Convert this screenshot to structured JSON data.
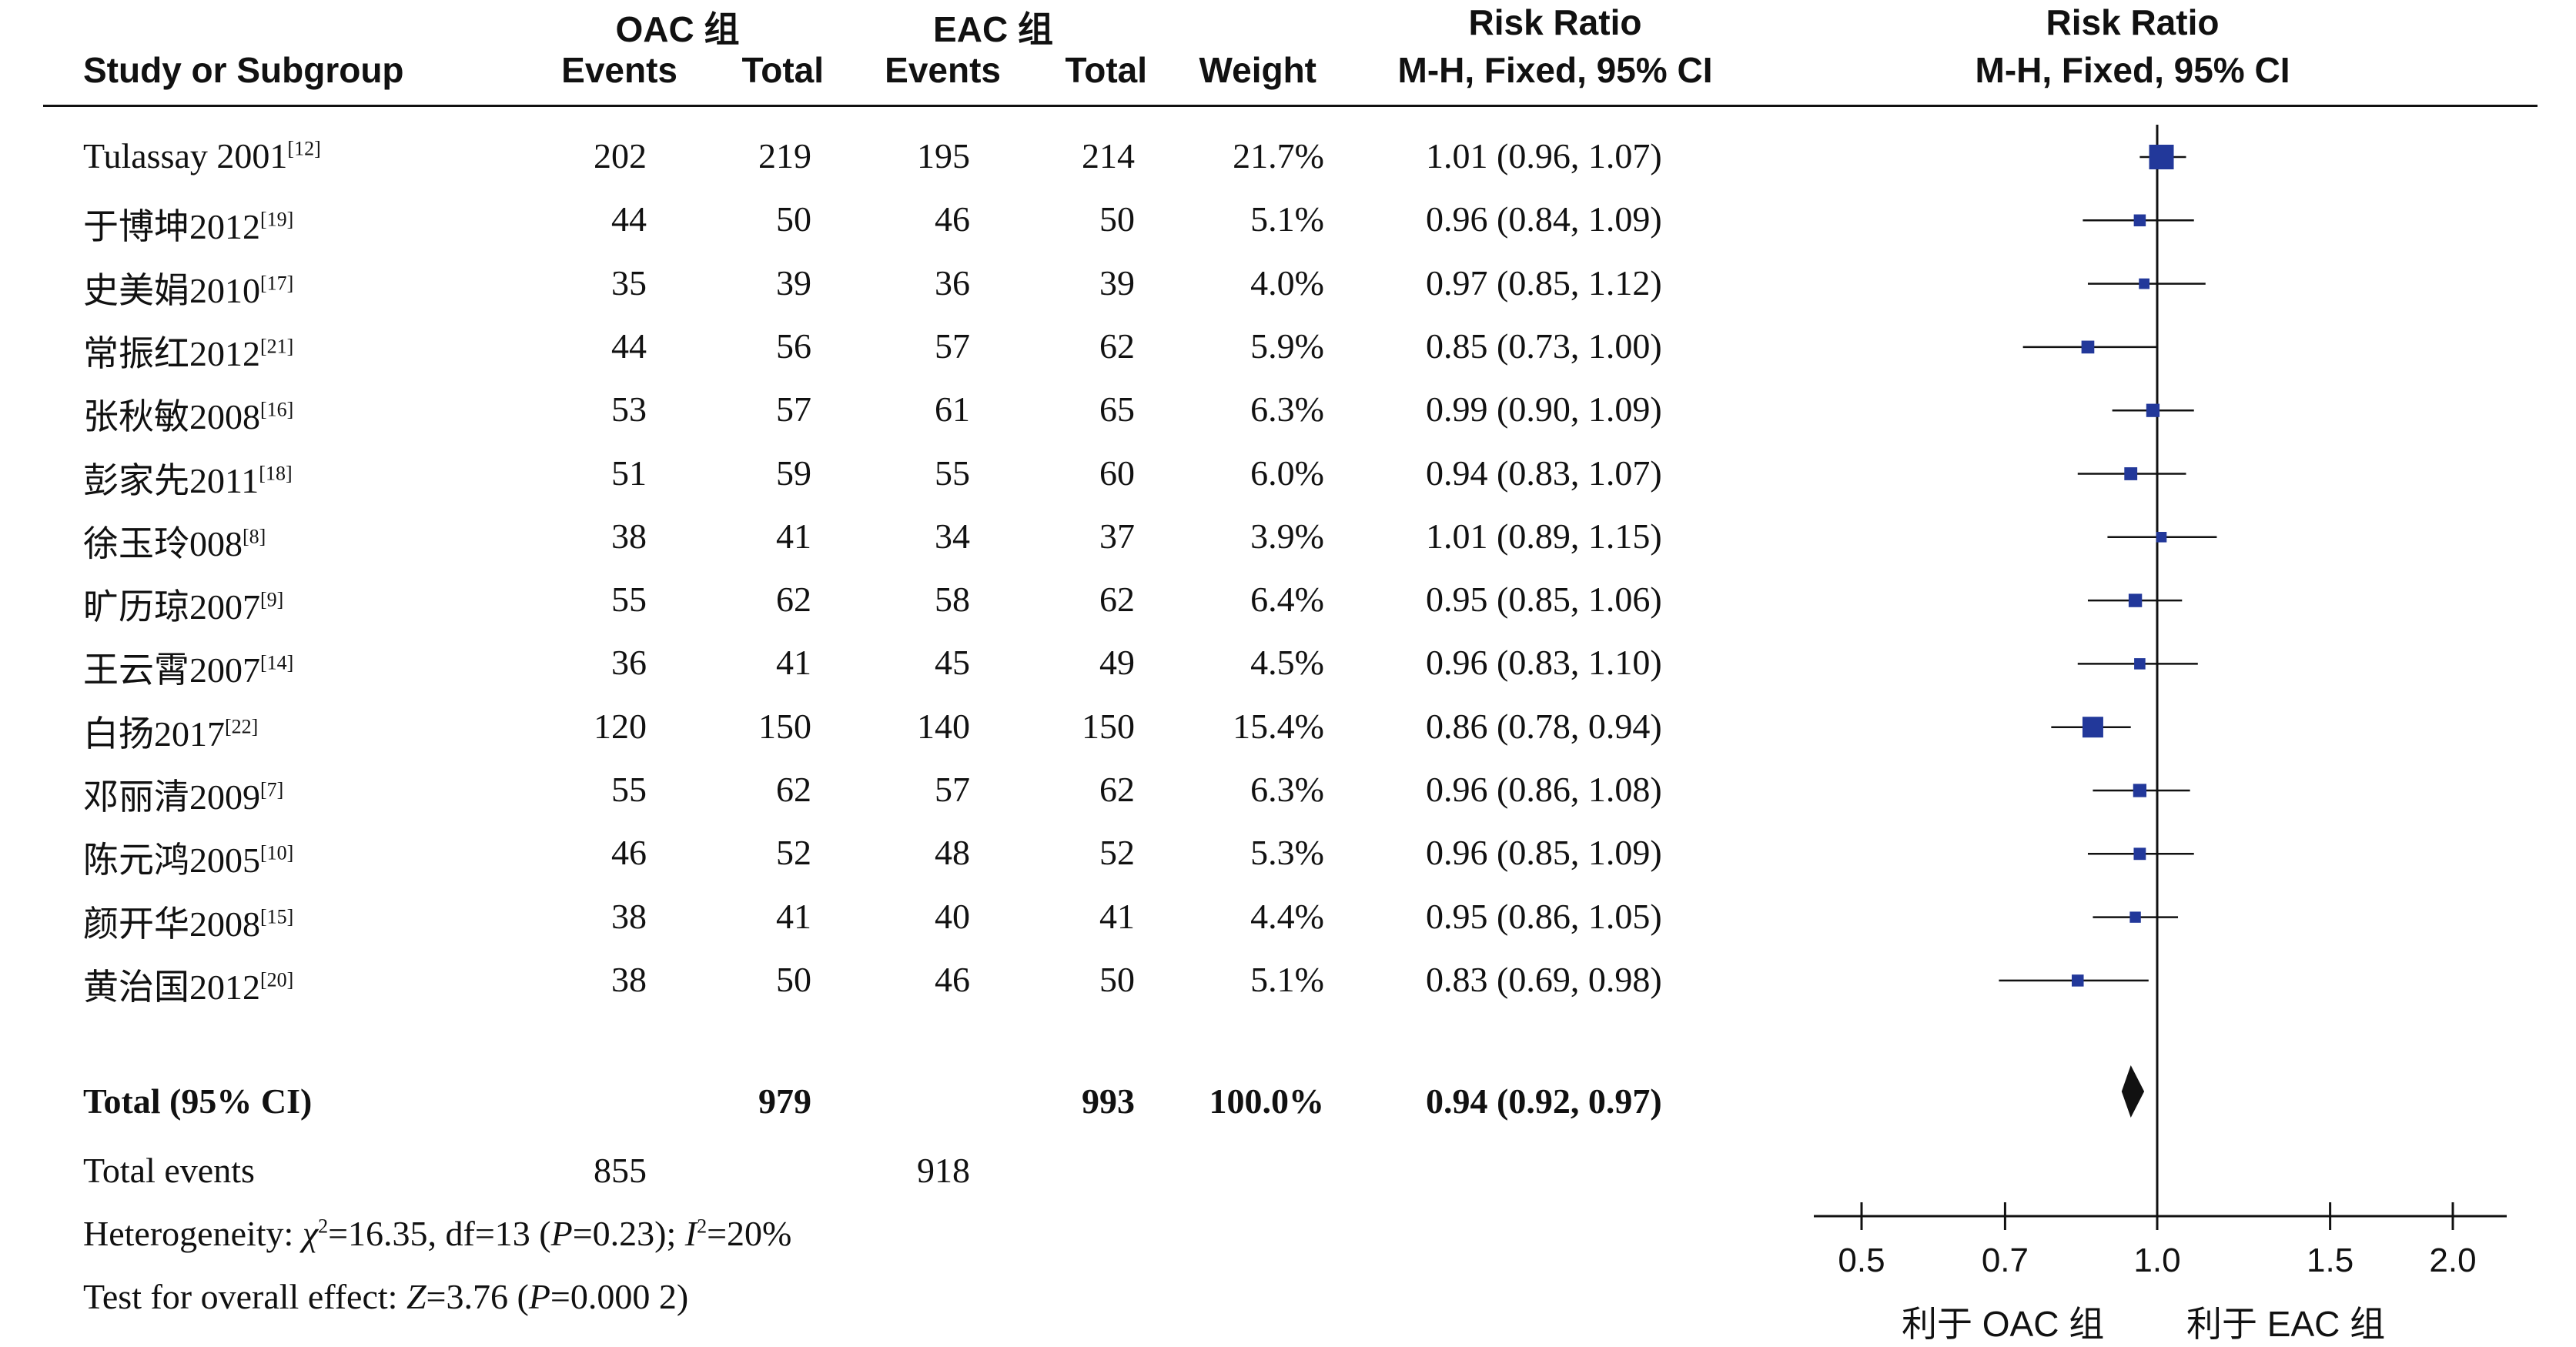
{
  "header": {
    "group1": "OAC 组",
    "group2": "EAC 组",
    "study_col": "Study or Subgroup",
    "events": "Events",
    "total": "Total",
    "weight": "Weight",
    "rr_title": "Risk Ratio",
    "rr_method": "M-H, Fixed, 95% CI",
    "plot_title": "Risk Ratio",
    "plot_method": "M-H, Fixed, 95% CI"
  },
  "studies": [
    {
      "name": "Tulassay 2001",
      "ref": "[12]",
      "oac_events": "202",
      "oac_total": "219",
      "eac_events": "195",
      "eac_total": "214",
      "weight": "21.7%",
      "rr_text": "1.01 (0.96, 1.07)"
    },
    {
      "name": "于博坤2012",
      "ref": "[19]",
      "oac_events": "44",
      "oac_total": "50",
      "eac_events": "46",
      "eac_total": "50",
      "weight": "5.1%",
      "rr_text": "0.96 (0.84, 1.09)"
    },
    {
      "name": "史美娟2010",
      "ref": "[17]",
      "oac_events": "35",
      "oac_total": "39",
      "eac_events": "36",
      "eac_total": "39",
      "weight": "4.0%",
      "rr_text": "0.97 (0.85, 1.12)"
    },
    {
      "name": "常振红2012",
      "ref": "[21]",
      "oac_events": "44",
      "oac_total": "56",
      "eac_events": "57",
      "eac_total": "62",
      "weight": "5.9%",
      "rr_text": "0.85 (0.73, 1.00)"
    },
    {
      "name": "张秋敏2008",
      "ref": "[16]",
      "oac_events": "53",
      "oac_total": "57",
      "eac_events": "61",
      "eac_total": "65",
      "weight": "6.3%",
      "rr_text": "0.99 (0.90, 1.09)"
    },
    {
      "name": "彭家先2011",
      "ref": "[18]",
      "oac_events": "51",
      "oac_total": "59",
      "eac_events": "55",
      "eac_total": "60",
      "weight": "6.0%",
      "rr_text": "0.94 (0.83, 1.07)"
    },
    {
      "name": "徐玉玲008",
      "ref": "[8]",
      "oac_events": "38",
      "oac_total": "41",
      "eac_events": "34",
      "eac_total": "37",
      "weight": "3.9%",
      "rr_text": "1.01 (0.89, 1.15)"
    },
    {
      "name": "旷历琼2007",
      "ref": "[9]",
      "oac_events": "55",
      "oac_total": "62",
      "eac_events": "58",
      "eac_total": "62",
      "weight": "6.4%",
      "rr_text": "0.95 (0.85, 1.06)"
    },
    {
      "name": "王云霄2007",
      "ref": "[14]",
      "oac_events": "36",
      "oac_total": "41",
      "eac_events": "45",
      "eac_total": "49",
      "weight": "4.5%",
      "rr_text": "0.96 (0.83, 1.10)"
    },
    {
      "name": "白扬2017",
      "ref": "[22]",
      "oac_events": "120",
      "oac_total": "150",
      "eac_events": "140",
      "eac_total": "150",
      "weight": "15.4%",
      "rr_text": "0.86 (0.78, 0.94)"
    },
    {
      "name": "邓丽清2009",
      "ref": "[7]",
      "oac_events": "55",
      "oac_total": "62",
      "eac_events": "57",
      "eac_total": "62",
      "weight": "6.3%",
      "rr_text": "0.96 (0.86, 1.08)"
    },
    {
      "name": "陈元鸿2005",
      "ref": "[10]",
      "oac_events": "46",
      "oac_total": "52",
      "eac_events": "48",
      "eac_total": "52",
      "weight": "5.3%",
      "rr_text": "0.96 (0.85, 1.09)"
    },
    {
      "name": "颜开华2008",
      "ref": "[15]",
      "oac_events": "38",
      "oac_total": "41",
      "eac_events": "40",
      "eac_total": "41",
      "weight": "4.4%",
      "rr_text": "0.95 (0.86, 1.05)"
    },
    {
      "name": "黄治国2012",
      "ref": "[20]",
      "oac_events": "38",
      "oac_total": "50",
      "eac_events": "46",
      "eac_total": "50",
      "weight": "5.1%",
      "rr_text": "0.83 (0.69, 0.98)"
    }
  ],
  "total_row": {
    "label": "Total (95% CI)",
    "oac_total": "979",
    "eac_total": "993",
    "weight": "100.0%",
    "rr_text": "0.94 (0.92, 0.97)"
  },
  "total_events": {
    "label": "Total events",
    "oac": "855",
    "eac": "918"
  },
  "heterogeneity": {
    "prefix": "Heterogeneity: ",
    "chi": "χ",
    "chi_val": "=16.35, df=13 (",
    "p": "P",
    "p_val": "=0.23); ",
    "i": "I",
    "i_val": "=20%"
  },
  "overall": {
    "prefix": "Test for overall effect: ",
    "z": "Z",
    "z_val": "=3.76 (",
    "p": "P",
    "p_val": "=0.000 2)"
  },
  "axis": {
    "favors_left": "利于 OAC 组",
    "favors_right": "利于 EAC 组"
  },
  "colors": {
    "marker": "#22389a",
    "diamond": "#111111",
    "line": "#111111"
  },
  "chart_data": {
    "type": "forest",
    "title": "Risk Ratio",
    "subtitle": "M-H, Fixed, 95% CI",
    "x_ticks": [
      0.5,
      0.7,
      1.0,
      1.5,
      2.0
    ],
    "x_tick_labels": [
      "0.5",
      "0.7",
      "1.0",
      "1.5",
      "2.0"
    ],
    "xlim": [
      0.5,
      2.0
    ],
    "scale": "log",
    "reference_line": 1.0,
    "series": [
      {
        "rr": 1.01,
        "lo": 0.96,
        "hi": 1.07,
        "weight": 21.7
      },
      {
        "rr": 0.96,
        "lo": 0.84,
        "hi": 1.09,
        "weight": 5.1
      },
      {
        "rr": 0.97,
        "lo": 0.85,
        "hi": 1.12,
        "weight": 4.0
      },
      {
        "rr": 0.85,
        "lo": 0.73,
        "hi": 1.0,
        "weight": 5.9
      },
      {
        "rr": 0.99,
        "lo": 0.9,
        "hi": 1.09,
        "weight": 6.3
      },
      {
        "rr": 0.94,
        "lo": 0.83,
        "hi": 1.07,
        "weight": 6.0
      },
      {
        "rr": 1.01,
        "lo": 0.89,
        "hi": 1.15,
        "weight": 3.9
      },
      {
        "rr": 0.95,
        "lo": 0.85,
        "hi": 1.06,
        "weight": 6.4
      },
      {
        "rr": 0.96,
        "lo": 0.83,
        "hi": 1.1,
        "weight": 4.5
      },
      {
        "rr": 0.86,
        "lo": 0.78,
        "hi": 0.94,
        "weight": 15.4
      },
      {
        "rr": 0.96,
        "lo": 0.86,
        "hi": 1.08,
        "weight": 6.3
      },
      {
        "rr": 0.96,
        "lo": 0.85,
        "hi": 1.09,
        "weight": 5.3
      },
      {
        "rr": 0.95,
        "lo": 0.86,
        "hi": 1.05,
        "weight": 4.4
      },
      {
        "rr": 0.83,
        "lo": 0.69,
        "hi": 0.98,
        "weight": 5.1
      }
    ],
    "pooled": {
      "rr": 0.94,
      "lo": 0.92,
      "hi": 0.97
    }
  }
}
